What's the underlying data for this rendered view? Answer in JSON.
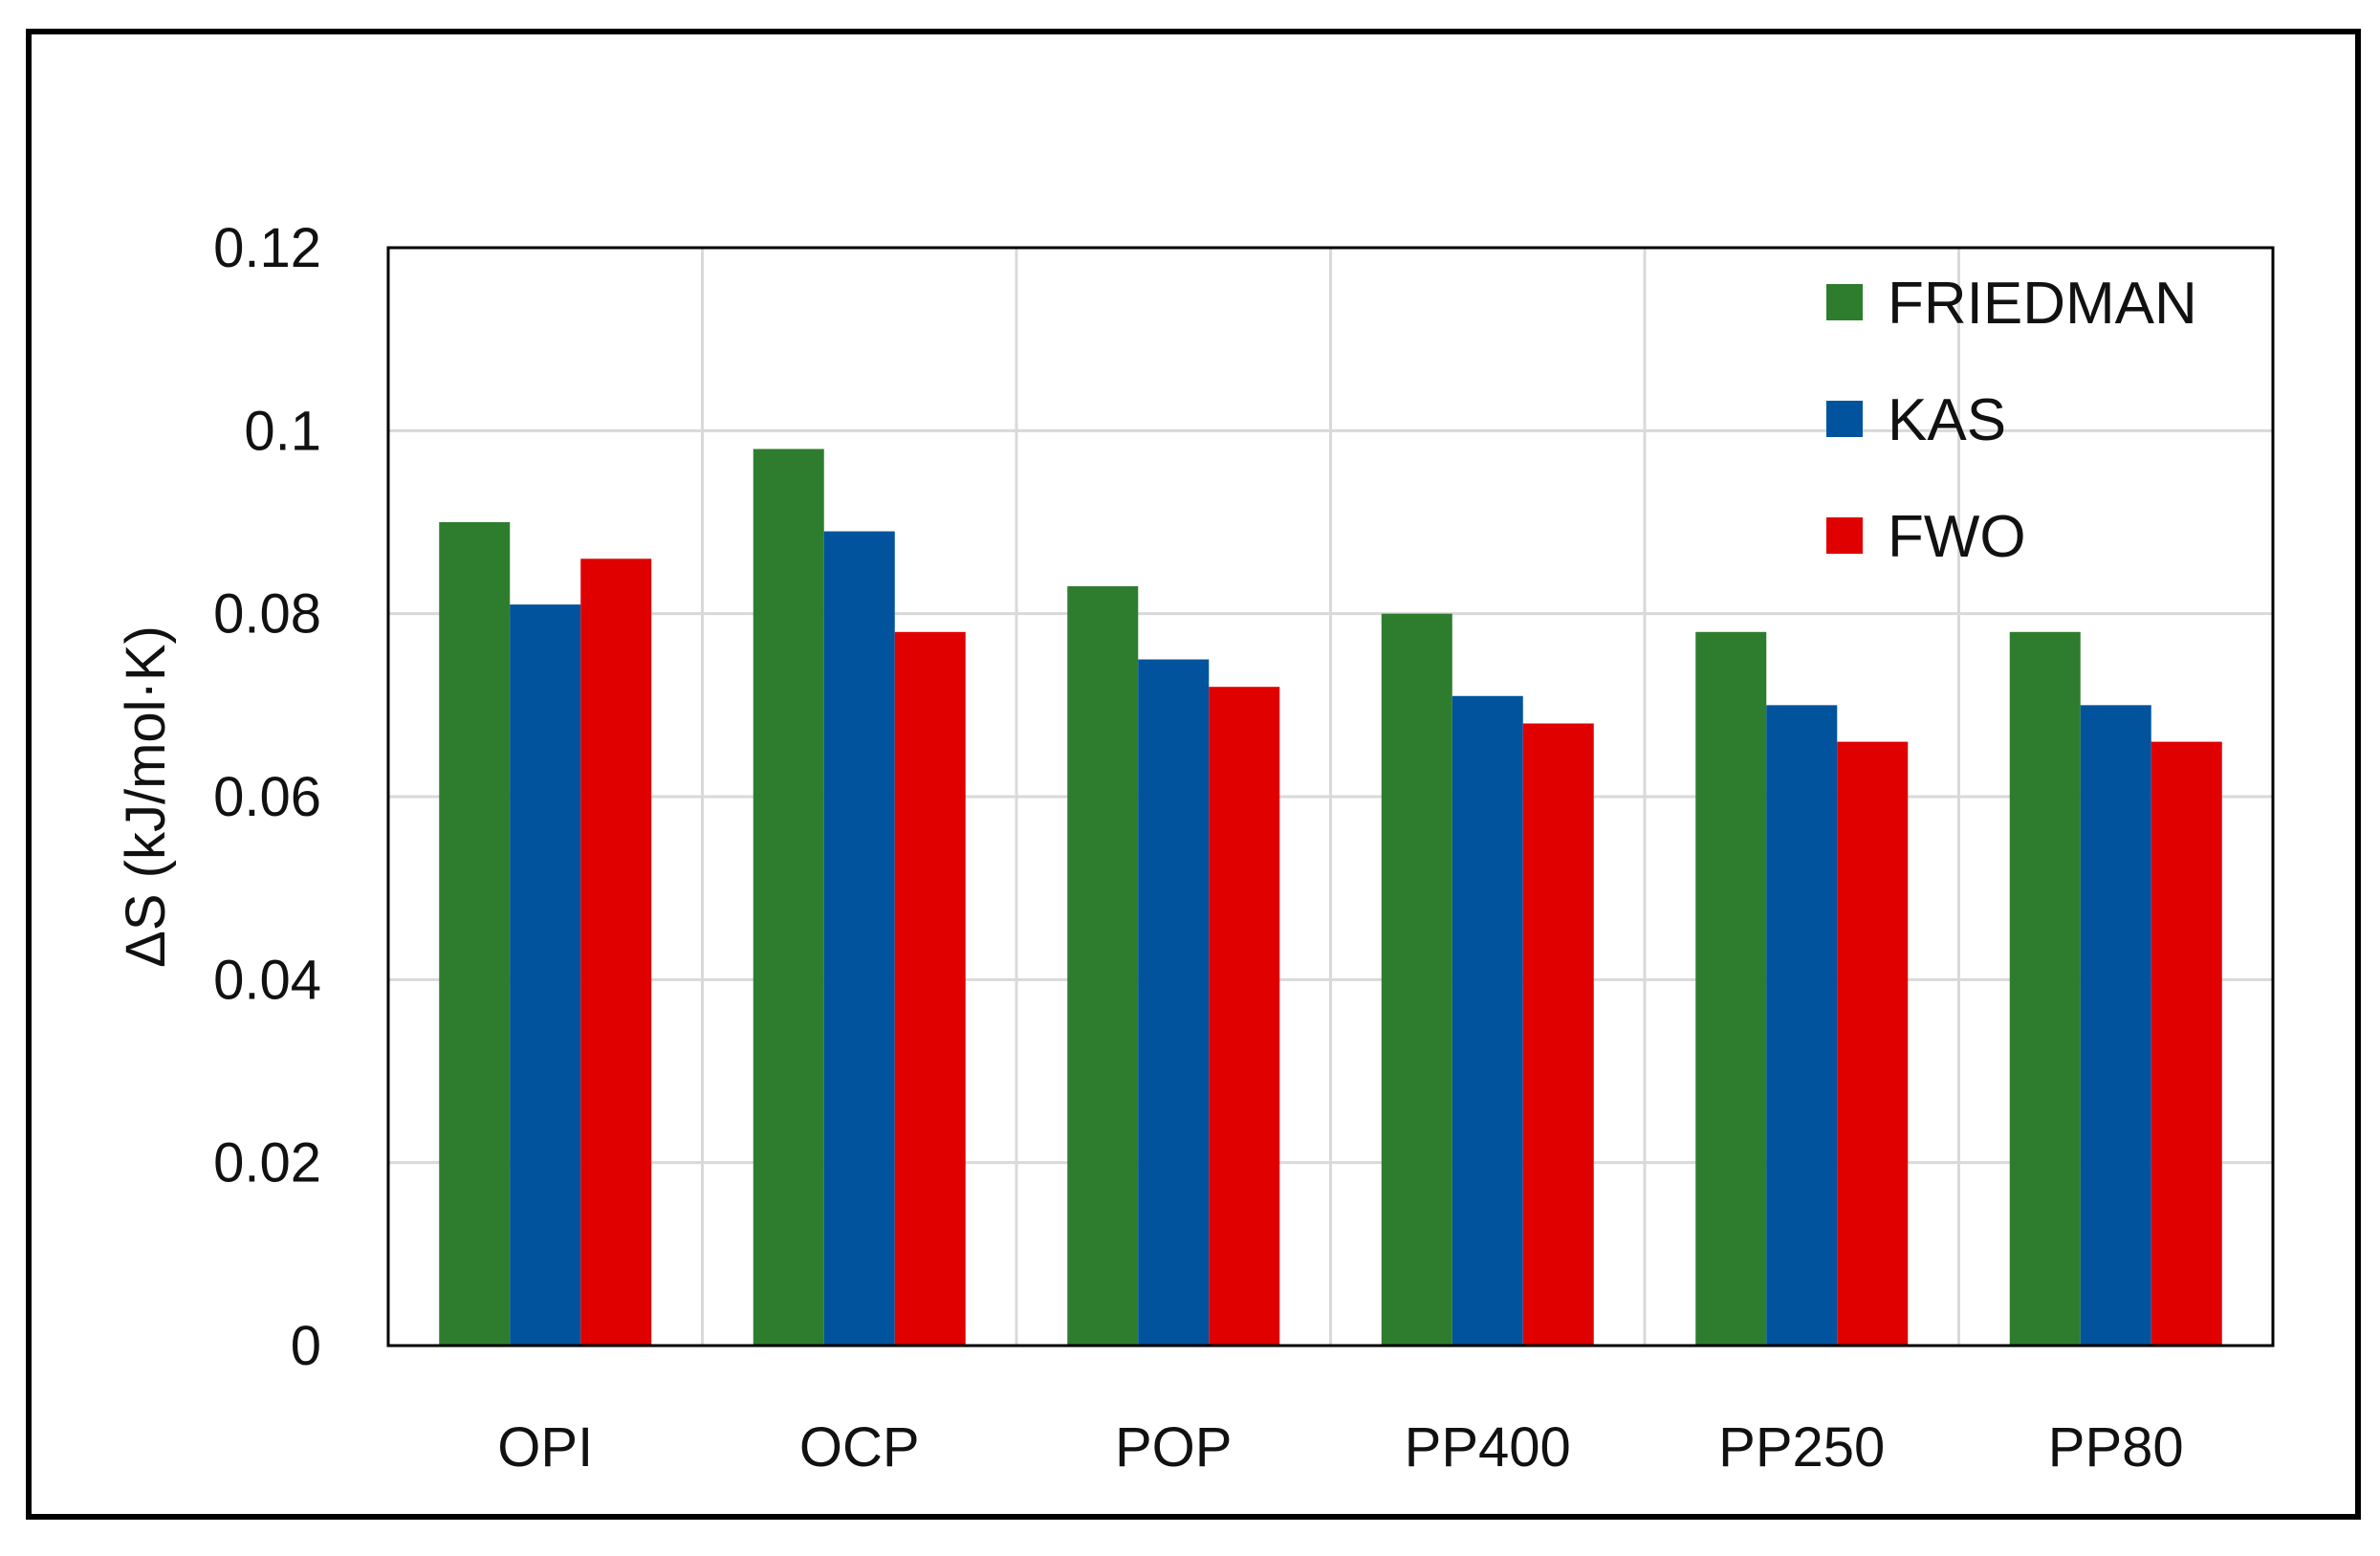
{
  "chart_data": {
    "type": "bar",
    "title": "",
    "xlabel": "",
    "ylabel": "ΔS (kJ/mol·K)",
    "categories": [
      "OPI",
      "OCP",
      "POP",
      "PP400",
      "PP250",
      "PP80"
    ],
    "ylim": [
      0,
      0.12
    ],
    "yticks": [
      "0",
      "0.02",
      "0.04",
      "0.06",
      "0.08",
      "0.1",
      "0.12"
    ],
    "ytick_values": [
      0,
      0.02,
      0.04,
      0.06,
      0.08,
      0.1,
      0.12
    ],
    "grid": true,
    "legend_position": "top-right",
    "series": [
      {
        "name": "FRIEDMAN",
        "color": "#2E7D2E",
        "values": [
          0.09,
          0.098,
          0.083,
          0.08,
          0.078,
          0.078
        ]
      },
      {
        "name": "KAS",
        "color": "#00539C",
        "values": [
          0.081,
          0.089,
          0.075,
          0.071,
          0.07,
          0.07
        ]
      },
      {
        "name": "FWO",
        "color": "#E00000",
        "values": [
          0.086,
          0.078,
          0.072,
          0.068,
          0.066,
          0.066
        ]
      }
    ]
  }
}
